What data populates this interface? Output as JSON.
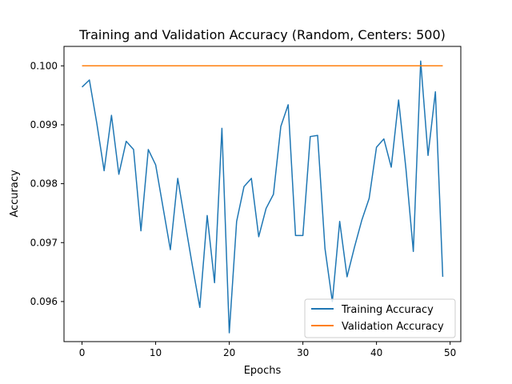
{
  "chart_data": {
    "type": "line",
    "title": "Training and Validation Accuracy (Random, Centers: 500)",
    "xlabel": "Epochs",
    "ylabel": "Accuracy",
    "xlim": [
      -2.45,
      51.45
    ],
    "ylim": [
      0.09532,
      0.10033
    ],
    "x_ticks": [
      0,
      10,
      20,
      30,
      40,
      50
    ],
    "x_tick_labels": [
      "0",
      "10",
      "20",
      "30",
      "40",
      "50"
    ],
    "y_ticks": [
      0.096,
      0.097,
      0.098,
      0.099,
      0.1
    ],
    "y_tick_labels": [
      "0.096",
      "0.097",
      "0.098",
      "0.099",
      "0.100"
    ],
    "grid": false,
    "legend_position": "lower right",
    "x": [
      0,
      1,
      2,
      3,
      4,
      5,
      6,
      7,
      8,
      9,
      10,
      11,
      12,
      13,
      14,
      15,
      16,
      17,
      18,
      19,
      20,
      21,
      22,
      23,
      24,
      25,
      26,
      27,
      28,
      29,
      30,
      31,
      32,
      33,
      34,
      35,
      36,
      37,
      38,
      39,
      40,
      41,
      42,
      43,
      44,
      45,
      46,
      47,
      48,
      49
    ],
    "series": [
      {
        "name": "Training Accuracy",
        "color": "#1f77b4",
        "values": [
          0.09964,
          0.09976,
          0.09903,
          0.09822,
          0.09916,
          0.09816,
          0.09872,
          0.09858,
          0.0972,
          0.09858,
          0.09832,
          0.0976,
          0.09688,
          0.09809,
          0.09734,
          0.0966,
          0.0959,
          0.09746,
          0.09632,
          0.09894,
          0.09547,
          0.09736,
          0.09795,
          0.09809,
          0.0971,
          0.09758,
          0.09782,
          0.09897,
          0.09934,
          0.09712,
          0.09712,
          0.0988,
          0.09882,
          0.0969,
          0.096,
          0.09736,
          0.09642,
          0.09692,
          0.09738,
          0.09775,
          0.09862,
          0.09876,
          0.09828,
          0.09942,
          0.09825,
          0.09685,
          0.10008,
          0.09848,
          0.09956,
          0.09642
        ]
      },
      {
        "name": "Validation Accuracy",
        "color": "#ff7f0e",
        "values": [
          0.1,
          0.1,
          0.1,
          0.1,
          0.1,
          0.1,
          0.1,
          0.1,
          0.1,
          0.1,
          0.1,
          0.1,
          0.1,
          0.1,
          0.1,
          0.1,
          0.1,
          0.1,
          0.1,
          0.1,
          0.1,
          0.1,
          0.1,
          0.1,
          0.1,
          0.1,
          0.1,
          0.1,
          0.1,
          0.1,
          0.1,
          0.1,
          0.1,
          0.1,
          0.1,
          0.1,
          0.1,
          0.1,
          0.1,
          0.1,
          0.1,
          0.1,
          0.1,
          0.1,
          0.1,
          0.1,
          0.1,
          0.1,
          0.1,
          0.1
        ]
      }
    ]
  }
}
